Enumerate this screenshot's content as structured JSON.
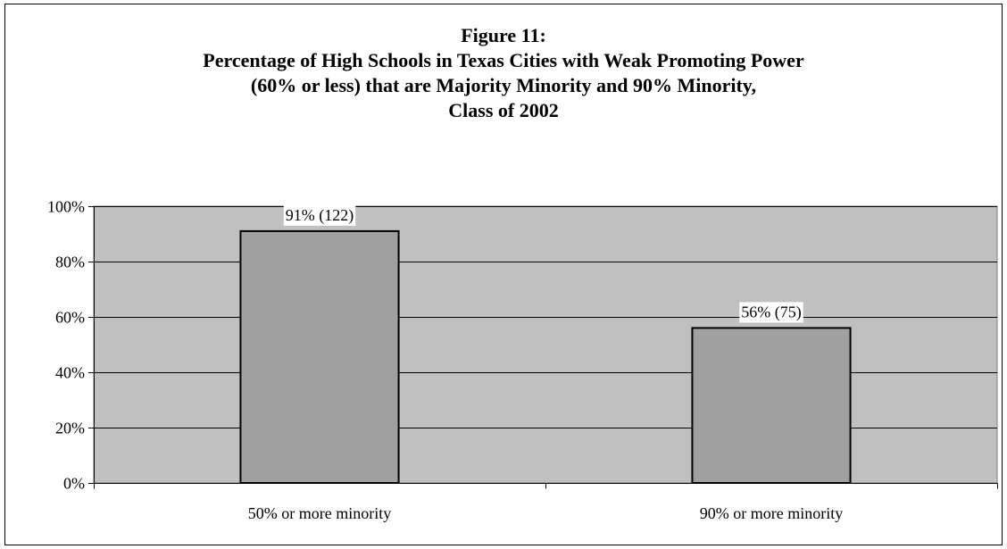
{
  "chart_data": {
    "type": "bar",
    "title": {
      "line1": "Figure 11:",
      "line2": "Percentage of High Schools in Texas Cities with Weak Promoting Power",
      "line3": "(60% or less) that are Majority Minority and 90% Minority,",
      "line4": "Class of 2002"
    },
    "categories": [
      "50% or more minority",
      "90% or more minority"
    ],
    "values": [
      91,
      56
    ],
    "data_labels": [
      "91% (122)",
      "56% (75)"
    ],
    "ylim": [
      0,
      100
    ],
    "yticks": [
      0,
      20,
      40,
      60,
      80,
      100
    ],
    "ytick_labels": [
      "0%",
      "20%",
      "40%",
      "60%",
      "80%",
      "100%"
    ],
    "xlabel": "",
    "ylabel": "",
    "grid": true,
    "legend": "none",
    "colors": {
      "plot_background": "#c0c0c0",
      "bar_fill": "#a0a0a0",
      "bar_stroke": "#000000",
      "gridline": "#000000",
      "data_label_background": "#ffffff"
    }
  }
}
